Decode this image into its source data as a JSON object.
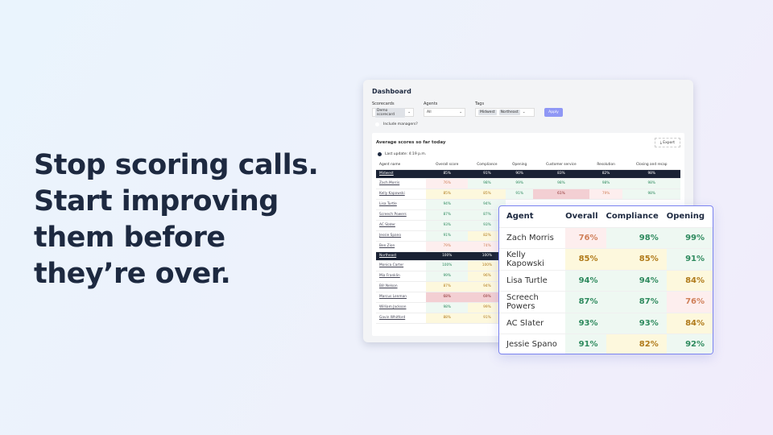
{
  "headline": "Stop scoring calls. Start improving them before they’re over.",
  "dashboard": {
    "title": "Dashboard",
    "filters": {
      "scorecards_label": "Scorecards",
      "scorecard_chip": "Demo scorecard",
      "agents_label": "Agents",
      "agents_value": "All",
      "tags_label": "Tags",
      "tags": [
        "Midwest",
        "Northeast"
      ],
      "apply_label": "Apply"
    },
    "include_managers": "Include managers?",
    "panel_title": "Average scores so far today",
    "export_label": "Export",
    "last_update": "Last update: 4:19 p.m.",
    "columns": [
      "Agent name",
      "Overall score",
      "Compliance",
      "Opening",
      "Customer service",
      "Resolution",
      "Closing and recap"
    ],
    "rows": [
      {
        "name": "Midwest",
        "group": true,
        "values": [
          "85%",
          "91%",
          "90%",
          "83%",
          "82%",
          "98%"
        ]
      },
      {
        "name": "Zach Morris",
        "values": [
          "76%",
          "98%",
          "99%",
          "98%",
          "98%",
          "98%"
        ],
        "tones": [
          "r",
          "g",
          "g",
          "g",
          "g",
          "g"
        ]
      },
      {
        "name": "Kelly Kapowski",
        "values": [
          "85%",
          "85%",
          "91%",
          "61%",
          "79%",
          "98%"
        ],
        "tones": [
          "y",
          "y",
          "g",
          "rr",
          "r",
          "g"
        ]
      },
      {
        "name": "Lisa Turtle",
        "values": [
          "94%",
          "94%"
        ],
        "tones": [
          "g",
          "g"
        ]
      },
      {
        "name": "Screech Powers",
        "values": [
          "87%",
          "87%"
        ],
        "tones": [
          "g",
          "g"
        ]
      },
      {
        "name": "AC Slater",
        "values": [
          "93%",
          "93%"
        ],
        "tones": [
          "g",
          "g"
        ]
      },
      {
        "name": "Jessie Spano",
        "values": [
          "91%",
          "82%"
        ],
        "tones": [
          "g",
          "y"
        ]
      },
      {
        "name": "Ben Zion",
        "values": [
          "79%",
          "74%"
        ],
        "tones": [
          "r",
          "r"
        ]
      },
      {
        "name": "Northeast",
        "group": true,
        "values": [
          "100%",
          "100%"
        ]
      },
      {
        "name": "Monica Carter",
        "values": [
          "100%",
          "100%"
        ],
        "tones": [
          "g",
          "y"
        ]
      },
      {
        "name": "Mia Franklin",
        "values": [
          "99%",
          "96%"
        ],
        "tones": [
          "g",
          "y"
        ]
      },
      {
        "name": "Bill Nelson",
        "values": [
          "87%",
          "94%"
        ],
        "tones": [
          "y",
          "y"
        ]
      },
      {
        "name": "Marcus Lenman",
        "values": [
          "68%",
          "69%"
        ],
        "tones": [
          "rr",
          "rr"
        ]
      },
      {
        "name": "William Jackson",
        "values": [
          "98%",
          "99%"
        ],
        "tones": [
          "g",
          "y"
        ]
      },
      {
        "name": "Gavin Whitford",
        "values": [
          "88%",
          "91%"
        ],
        "tones": [
          "y",
          "y"
        ]
      }
    ]
  },
  "zoom_card": {
    "columns": [
      "Agent",
      "Overall",
      "Compliance",
      "Opening"
    ],
    "rows": [
      {
        "name": "Zach Morris",
        "values": [
          "76%",
          "98%",
          "99%"
        ],
        "tones": [
          "r",
          "g",
          "g"
        ]
      },
      {
        "name": "Kelly Kapowski",
        "values": [
          "85%",
          "85%",
          "91%"
        ],
        "tones": [
          "y",
          "y",
          "g"
        ]
      },
      {
        "name": "Lisa Turtle",
        "values": [
          "94%",
          "94%",
          "84%"
        ],
        "tones": [
          "g",
          "g",
          "y"
        ]
      },
      {
        "name": "Screech Powers",
        "values": [
          "87%",
          "87%",
          "76%"
        ],
        "tones": [
          "g",
          "g",
          "r"
        ]
      },
      {
        "name": "AC Slater",
        "values": [
          "93%",
          "93%",
          "84%"
        ],
        "tones": [
          "g",
          "g",
          "y"
        ]
      },
      {
        "name": "Jessie Spano",
        "values": [
          "91%",
          "82%",
          "92%"
        ],
        "tones": [
          "g",
          "y",
          "g"
        ]
      }
    ]
  },
  "colors": {
    "accent": "#7b83f0",
    "header_dark": "#1a2234",
    "good": "#2e8a5e",
    "warn": "#b07a1a",
    "bad": "#d0805a"
  }
}
